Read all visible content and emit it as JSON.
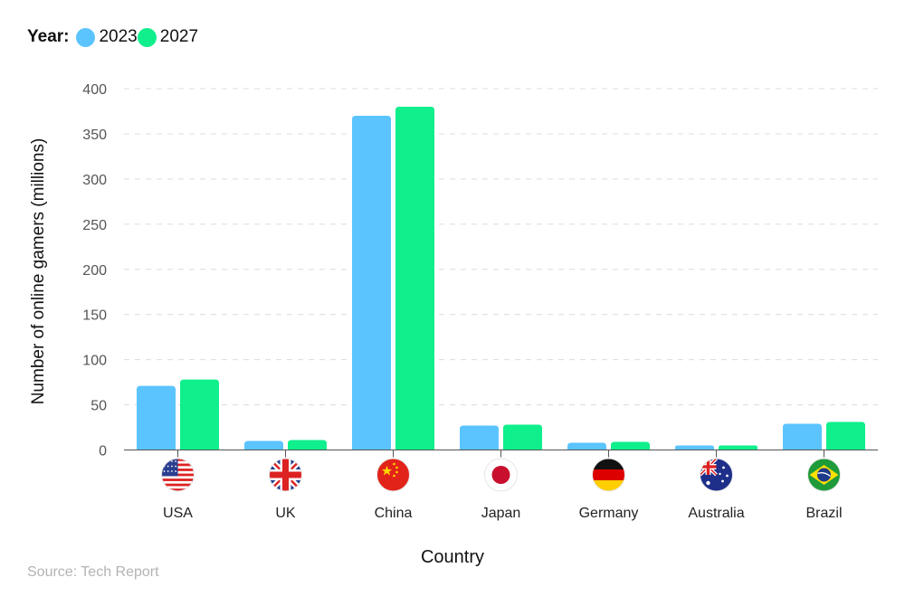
{
  "legend": {
    "title": "Year:",
    "items": [
      {
        "label": "2023",
        "color": "#5BC4FF"
      },
      {
        "label": "2027",
        "color": "#0FEF8C"
      }
    ]
  },
  "source": "Source: Tech Report",
  "chart_data": {
    "type": "bar",
    "xlabel": "Country",
    "ylabel": "Number of online gamers (millions)",
    "ylim": [
      0,
      400
    ],
    "yticks": [
      0,
      50,
      100,
      150,
      200,
      250,
      300,
      350,
      400
    ],
    "grid": true,
    "categories": [
      "USA",
      "UK",
      "China",
      "Japan",
      "Germany",
      "Australia",
      "Brazil"
    ],
    "flag_icons": [
      "usa-flag-icon",
      "uk-flag-icon",
      "china-flag-icon",
      "japan-flag-icon",
      "germany-flag-icon",
      "australia-flag-icon",
      "brazil-flag-icon"
    ],
    "series": [
      {
        "name": "2023",
        "color": "#5BC4FF",
        "values": [
          71,
          10,
          370,
          27,
          8,
          5,
          29
        ]
      },
      {
        "name": "2027",
        "color": "#0FEF8C",
        "values": [
          78,
          11,
          380,
          28,
          9,
          5,
          31
        ]
      }
    ]
  }
}
